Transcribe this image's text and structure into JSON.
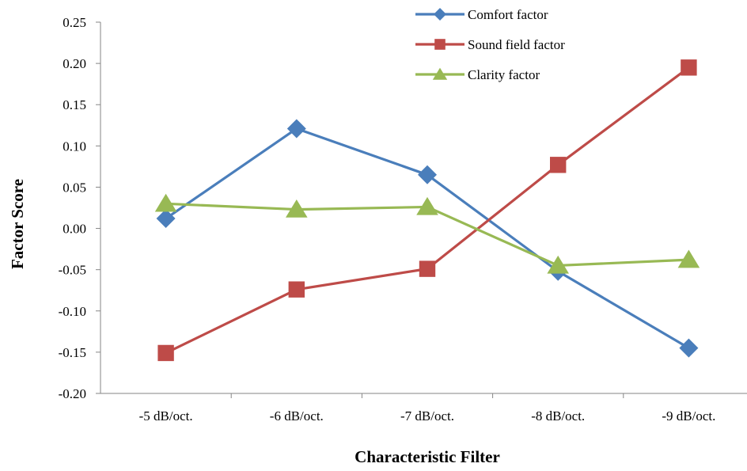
{
  "chart_data": {
    "type": "line",
    "title": "",
    "xlabel": "Characteristic Filter",
    "ylabel": "Factor Score",
    "categories": [
      "-5 dB/oct.",
      "-6 dB/oct.",
      "-7 dB/oct.",
      "-8 dB/oct.",
      "-9 dB/oct."
    ],
    "ylim": [
      -0.2,
      0.25
    ],
    "yticks": [
      "-0.20",
      "-0.15",
      "-0.10",
      "-0.05",
      "0.00",
      "0.05",
      "0.10",
      "0.15",
      "0.20",
      "0.25"
    ],
    "ytick_values": [
      -0.2,
      -0.15,
      -0.1,
      -0.05,
      0.0,
      0.05,
      0.1,
      0.15,
      0.2,
      0.25
    ],
    "grid": false,
    "legend_position": "top-right",
    "series": [
      {
        "name": "Comfort factor",
        "color": "#4a7ebb",
        "marker": "diamond",
        "values": [
          0.012,
          0.121,
          0.065,
          -0.052,
          -0.145
        ]
      },
      {
        "name": "Sound field factor",
        "color": "#be4b48",
        "marker": "square",
        "values": [
          -0.151,
          -0.074,
          -0.049,
          0.077,
          0.195
        ]
      },
      {
        "name": "Clarity factor",
        "color": "#98b954",
        "marker": "triangle",
        "values": [
          0.03,
          0.023,
          0.026,
          -0.045,
          -0.038
        ]
      }
    ]
  }
}
